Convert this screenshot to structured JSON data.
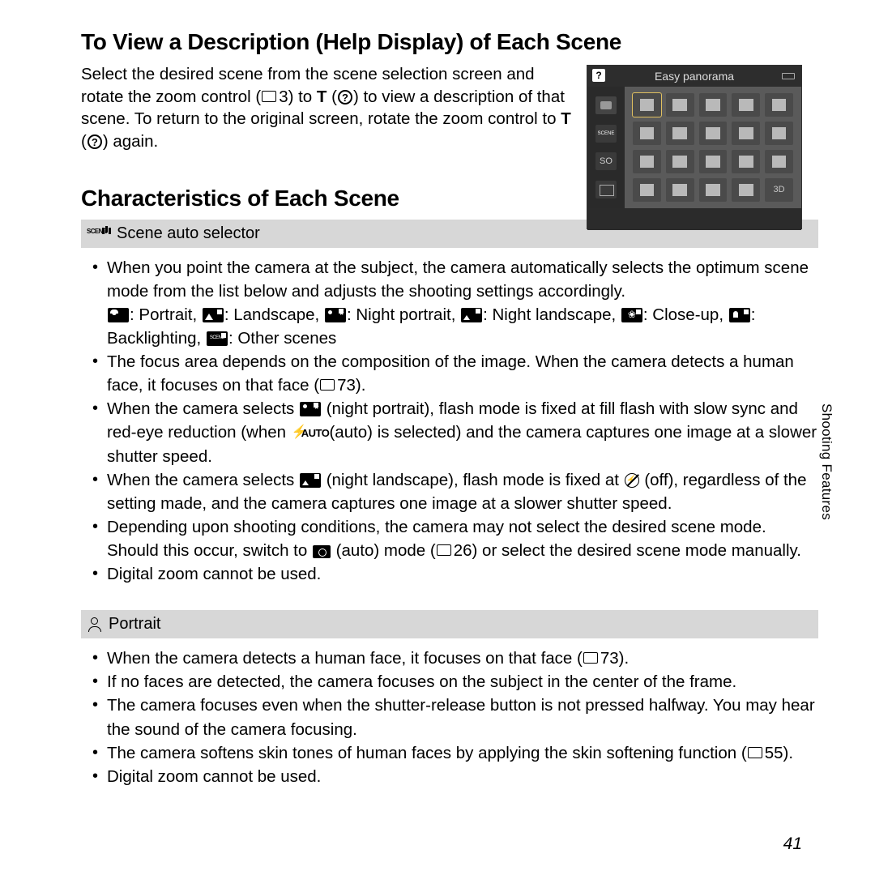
{
  "heading1": "To View a Description (Help Display) of Each Scene",
  "intro": {
    "l1a": "Select the desired scene from the scene selection screen and",
    "l2a": "rotate the zoom control (",
    "l2b": "3) to ",
    "l2c": "T",
    "l2d": " (",
    "l2e": ") to view a description",
    "l3a": "of that scene. To return to the original screen, rotate the zoom",
    "l4a": "control to ",
    "l4b": "T",
    "l4c": " (",
    "l4d": ") again."
  },
  "camera": {
    "title": "Easy panorama",
    "so": "SO"
  },
  "heading2": "Characteristics of Each Scene",
  "sceneAuto": {
    "title": " Scene auto selector",
    "b1a": "When you point the camera at the subject, the camera automatically selects the optimum scene mode from the list below and adjusts the shooting settings accordingly.",
    "b1_portrait": ": Portrait, ",
    "b1_landscape": ": Landscape, ",
    "b1_nportrait": ": Night portrait, ",
    "b1_nlandscape": ": Night landscape, ",
    "b1_closeup": ": Close-up, ",
    "b1_backlight": ": Backlighting, ",
    "b1_other": ": Other scenes",
    "b2a": "The focus area depends on the composition of the image. When the camera detects a human face, it focuses on that face (",
    "b2b": "73).",
    "b3a": "When the camera selects ",
    "b3b": " (night portrait), flash mode is fixed at fill flash with slow sync and red-eye reduction (when ",
    "b3c": " (auto) is selected) and the camera captures one image at a slower shutter speed.",
    "b4a": "When the camera selects ",
    "b4b": " (night landscape), flash mode is fixed at ",
    "b4c": " (off), regardless of the setting made, and the camera captures one image at a slower shutter speed.",
    "b5a": "Depending upon shooting conditions, the camera may not select the desired scene mode. Should this occur, switch to ",
    "b5b": " (auto) mode (",
    "b5c": "26) or select the desired scene mode manually.",
    "b6": "Digital zoom cannot be used."
  },
  "portrait": {
    "title": " Portrait",
    "b1a": "When the camera detects a human face, it focuses on that face (",
    "b1b": "73).",
    "b2": "If no faces are detected, the camera focuses on the subject in the center of the frame.",
    "b3": "The camera focuses even when the shutter-release button is not pressed halfway. You may hear the sound of the camera focusing.",
    "b4a": "The camera softens skin tones of human faces by applying the skin softening function (",
    "b4b": "55).",
    "b5": "Digital zoom cannot be used."
  },
  "sideLabel": "Shooting Features",
  "pageNum": "41"
}
